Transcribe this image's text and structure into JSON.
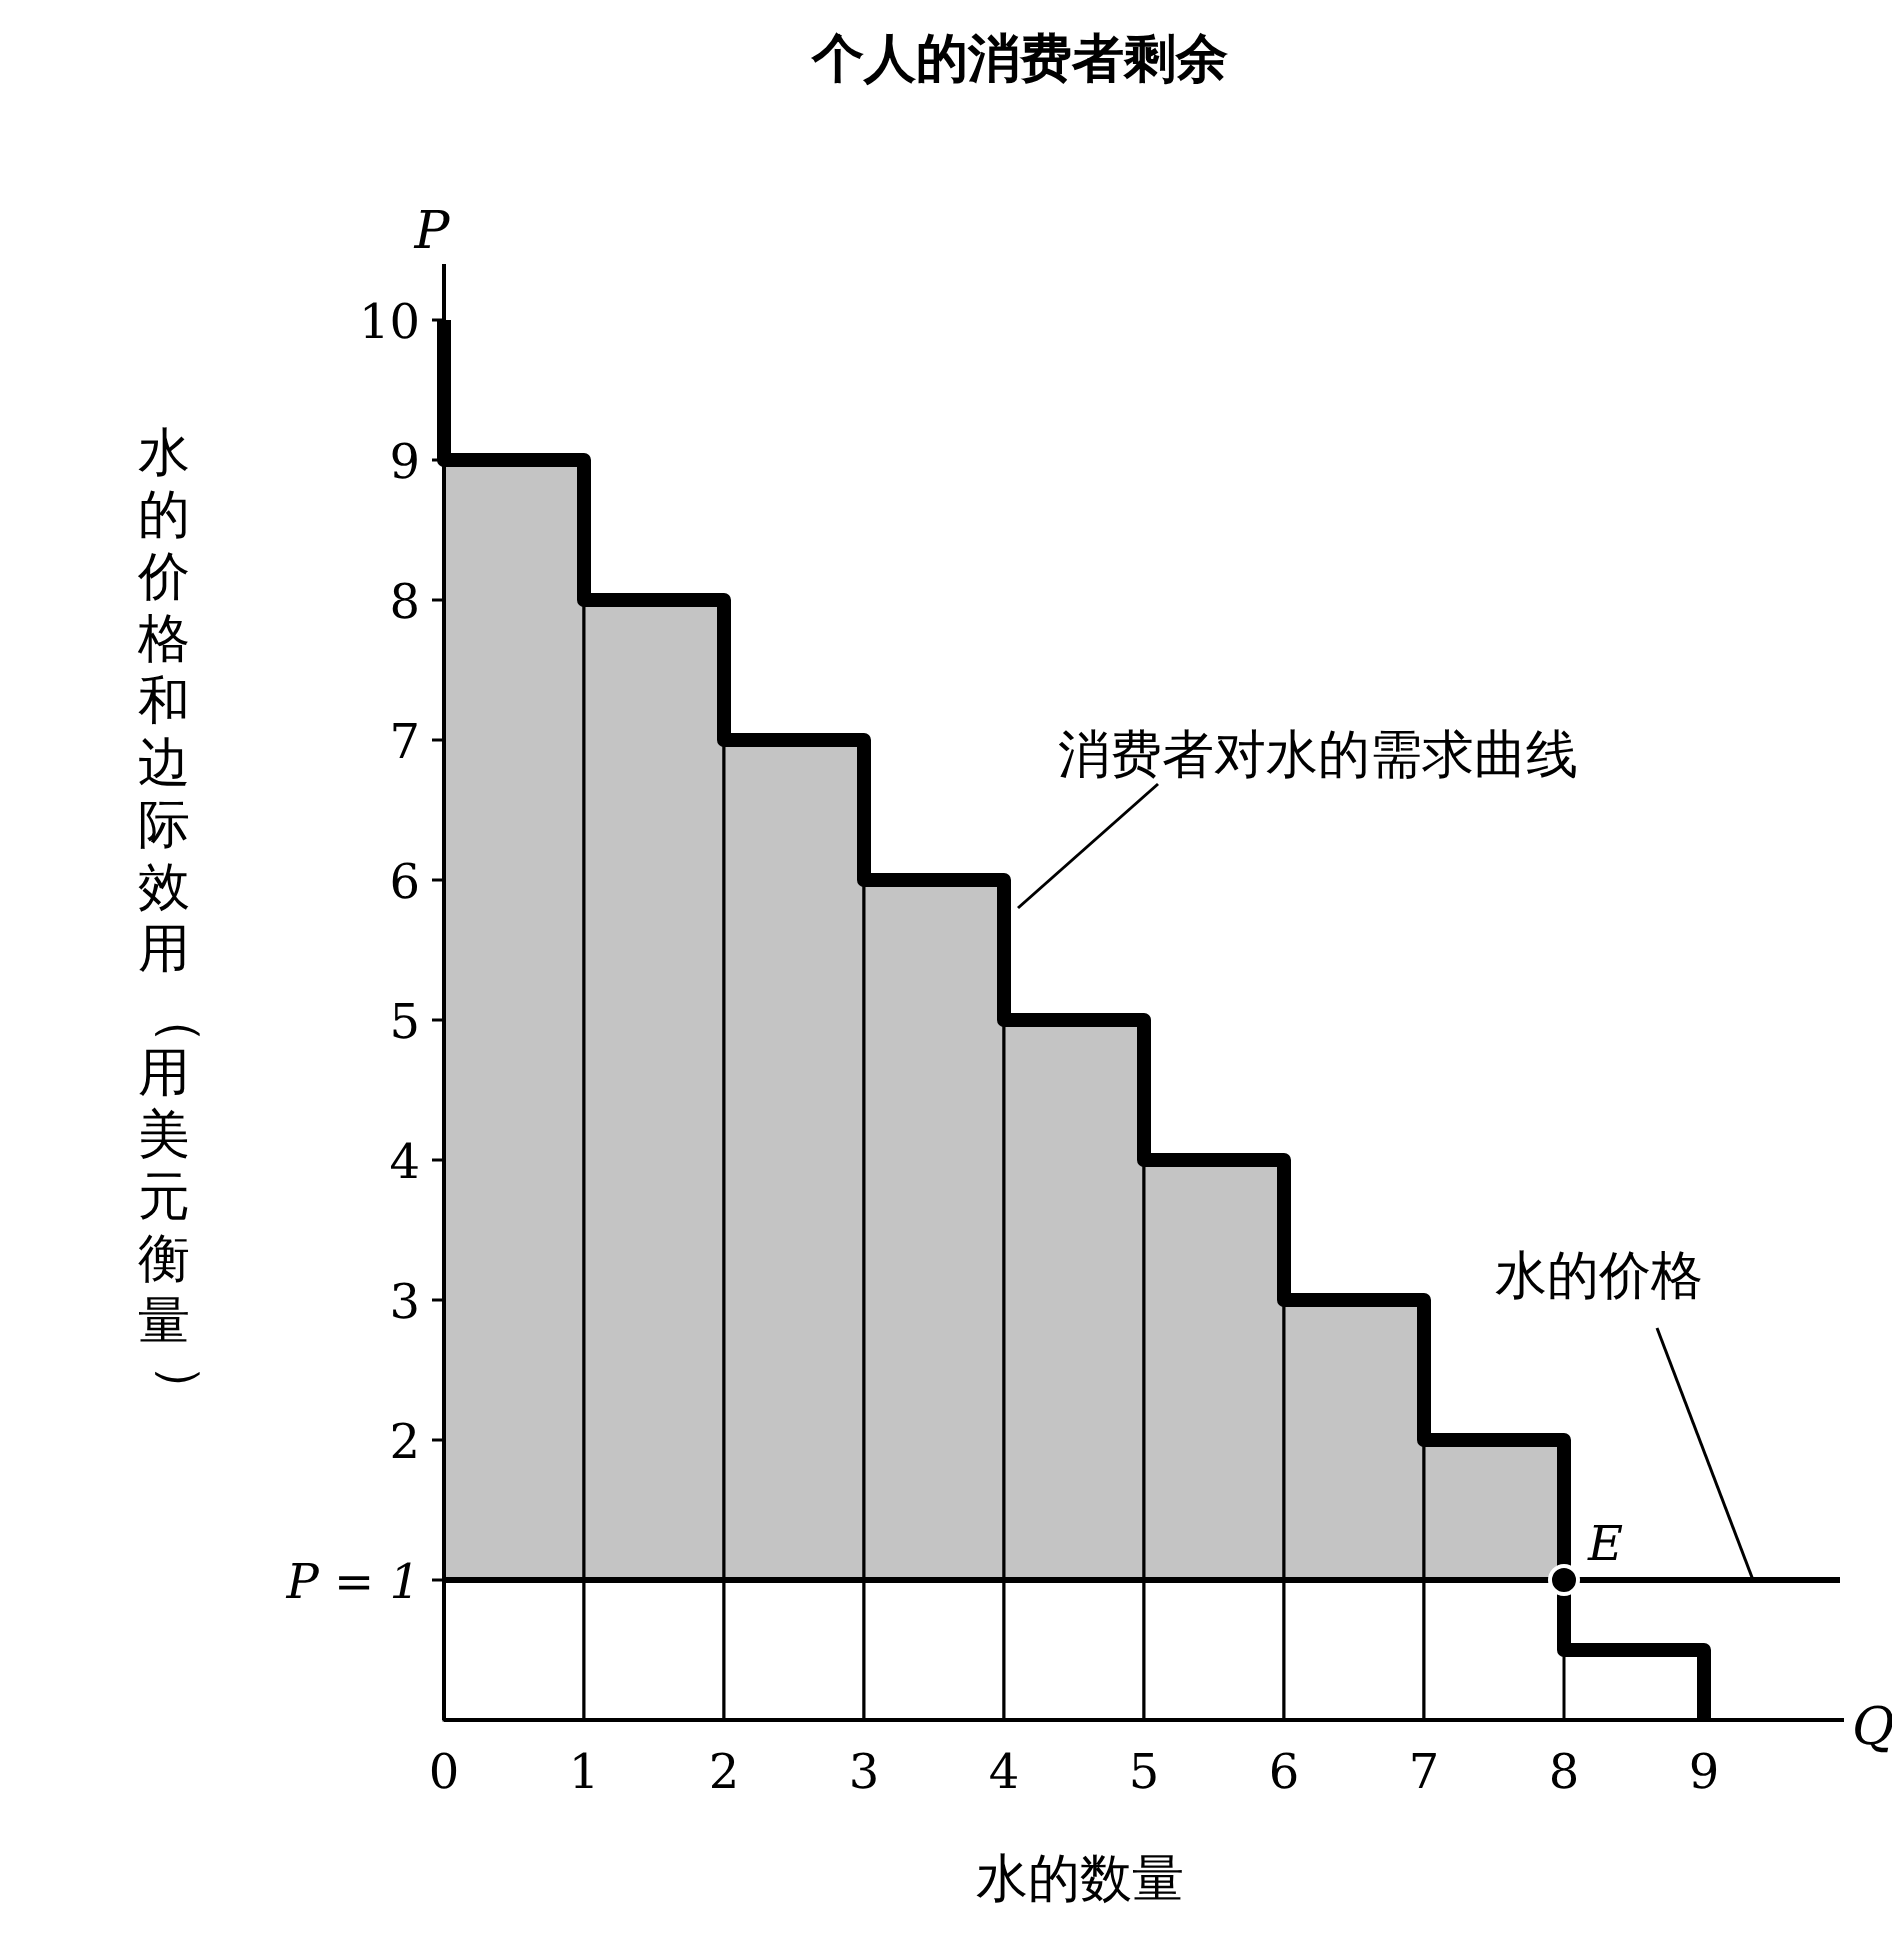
{
  "chart_data": {
    "type": "bar",
    "stacked": true,
    "title": "个人的消费者剩余",
    "xlabel": "水的数量",
    "ylabel": "水的价格和边际效用（用美元衡量）",
    "x": [
      0.5,
      1.5,
      2.5,
      3.5,
      4.5,
      5.5,
      6.5,
      7.5
    ],
    "series": [
      {
        "color": "#ffffff",
        "values": [
          1,
          1,
          1,
          1,
          1,
          1,
          1,
          1
        ]
      },
      {
        "color": "#c4c4c4",
        "values": [
          8,
          7,
          6,
          5,
          4,
          3,
          2,
          1
        ]
      },
      {
        "type": "line",
        "color": "#000000",
        "x": [
          0,
          0,
          1,
          1,
          2,
          2,
          3,
          3,
          4,
          4,
          5,
          5,
          6,
          6,
          7,
          7,
          8,
          8,
          9,
          9
        ],
        "values": [
          10,
          9,
          9,
          8,
          8,
          7,
          7,
          6,
          6,
          5,
          5,
          4,
          4,
          3,
          3,
          2,
          2,
          0.5,
          0.5,
          0
        ]
      },
      {
        "type": "scatter",
        "name": "E",
        "color": "#000000",
        "x": [
          8
        ],
        "values": [
          1
        ]
      }
    ],
    "xlim": [
      0,
      10
    ],
    "ylim": [
      0,
      10.4
    ],
    "xticks": [
      0,
      1,
      2,
      3,
      4,
      5,
      6,
      7,
      8,
      9
    ],
    "yticks": [
      {
        "value": 1,
        "label": "P = 1"
      },
      2,
      3,
      4,
      5,
      6,
      7,
      8,
      9,
      10
    ],
    "ref_lines": [
      {
        "axis": "y",
        "value": 1,
        "label": "水的价格",
        "color": "#000000"
      }
    ],
    "annotations": [
      "P",
      "Q",
      {
        "text": "消费者对水的需求曲线",
        "x": 4.1,
        "y": 5.8
      }
    ],
    "grid": false,
    "legend": false
  }
}
